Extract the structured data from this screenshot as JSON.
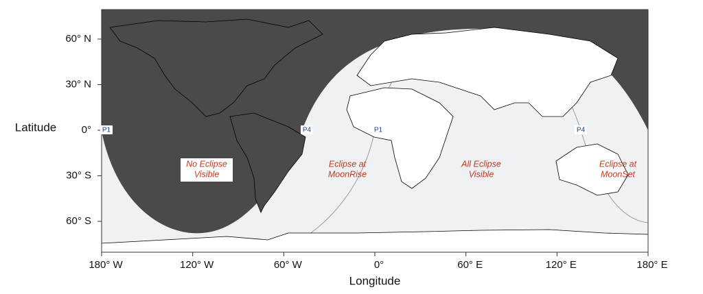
{
  "map": {
    "y_axis": {
      "label": "Latitude",
      "ticks": [
        {
          "value": 60,
          "label": "60° N"
        },
        {
          "value": 30,
          "label": "30° N"
        },
        {
          "value": 0,
          "label": "0°"
        },
        {
          "value": -30,
          "label": "30° S"
        },
        {
          "value": -60,
          "label": "60° S"
        }
      ]
    },
    "x_axis": {
      "label": "Longitude",
      "ticks": [
        {
          "value": -180,
          "label": "180° W"
        },
        {
          "value": -120,
          "label": "120° W"
        },
        {
          "value": -60,
          "label": "60° W"
        },
        {
          "value": 0,
          "label": "0°"
        },
        {
          "value": 60,
          "label": "60° E"
        },
        {
          "value": 120,
          "label": "120° E"
        },
        {
          "value": 180,
          "label": "180° E"
        }
      ]
    },
    "regions": [
      {
        "lines": [
          "No Eclipse",
          "Visible"
        ]
      },
      {
        "lines": [
          "Eclipse at",
          "MoonRise"
        ]
      },
      {
        "lines": [
          "All Eclipse",
          "Visible"
        ]
      },
      {
        "lines": [
          "Eclipse at",
          "MoonSet"
        ]
      }
    ],
    "markers": [
      "P1",
      "P4",
      "P1",
      "P4"
    ]
  }
}
